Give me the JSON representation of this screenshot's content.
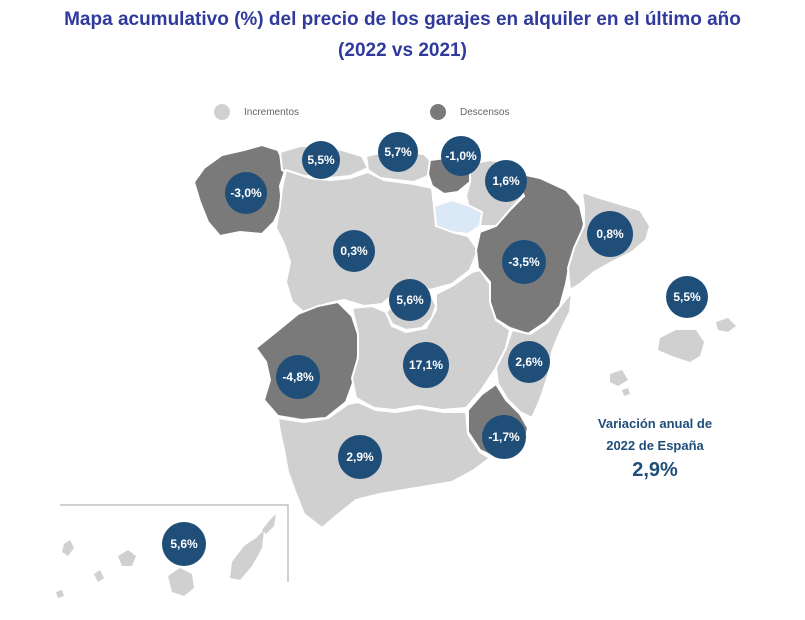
{
  "title_line1": "Mapa acumulativo (%) del precio de los garajes en alquiler en el último año",
  "title_line2": "(2022 vs 2021)",
  "legend": {
    "increase_label": "Incrementos",
    "decrease_label": "Descensos",
    "increase_color": "#d0d0d0",
    "decrease_color": "#7a7a7a"
  },
  "colors": {
    "bubble": "#1f4e79",
    "no_data_region": "#dbe8f5",
    "title": "#2f3a9c"
  },
  "regions": [
    {
      "name": "Galicia",
      "value": "-3,0%",
      "trend": "decrease"
    },
    {
      "name": "Asturias",
      "value": "5,5%",
      "trend": "increase"
    },
    {
      "name": "Cantabria",
      "value": "5,7%",
      "trend": "increase"
    },
    {
      "name": "País Vasco",
      "value": "-1,0%",
      "trend": "decrease"
    },
    {
      "name": "Navarra",
      "value": "1,6%",
      "trend": "increase"
    },
    {
      "name": "Cataluña",
      "value": "0,8%",
      "trend": "increase"
    },
    {
      "name": "Castilla y León",
      "value": "0,3%",
      "trend": "increase"
    },
    {
      "name": "Aragón",
      "value": "-3,5%",
      "trend": "decrease"
    },
    {
      "name": "Madrid",
      "value": "5,6%",
      "trend": "increase"
    },
    {
      "name": "Baleares",
      "value": "5,5%",
      "trend": "increase"
    },
    {
      "name": "Extremadura",
      "value": "-4,8%",
      "trend": "decrease"
    },
    {
      "name": "Castilla-La Mancha",
      "value": "17,1%",
      "trend": "increase"
    },
    {
      "name": "Comunidad Valenciana",
      "value": "2,6%",
      "trend": "increase"
    },
    {
      "name": "Murcia",
      "value": "-1,7%",
      "trend": "decrease"
    },
    {
      "name": "Andalucía",
      "value": "2,9%",
      "trend": "increase"
    },
    {
      "name": "Canarias",
      "value": "5,6%",
      "trend": "increase"
    }
  ],
  "summary": {
    "label_line1": "Variación anual de",
    "label_line2": "2022 de España",
    "value": "2,9%"
  }
}
